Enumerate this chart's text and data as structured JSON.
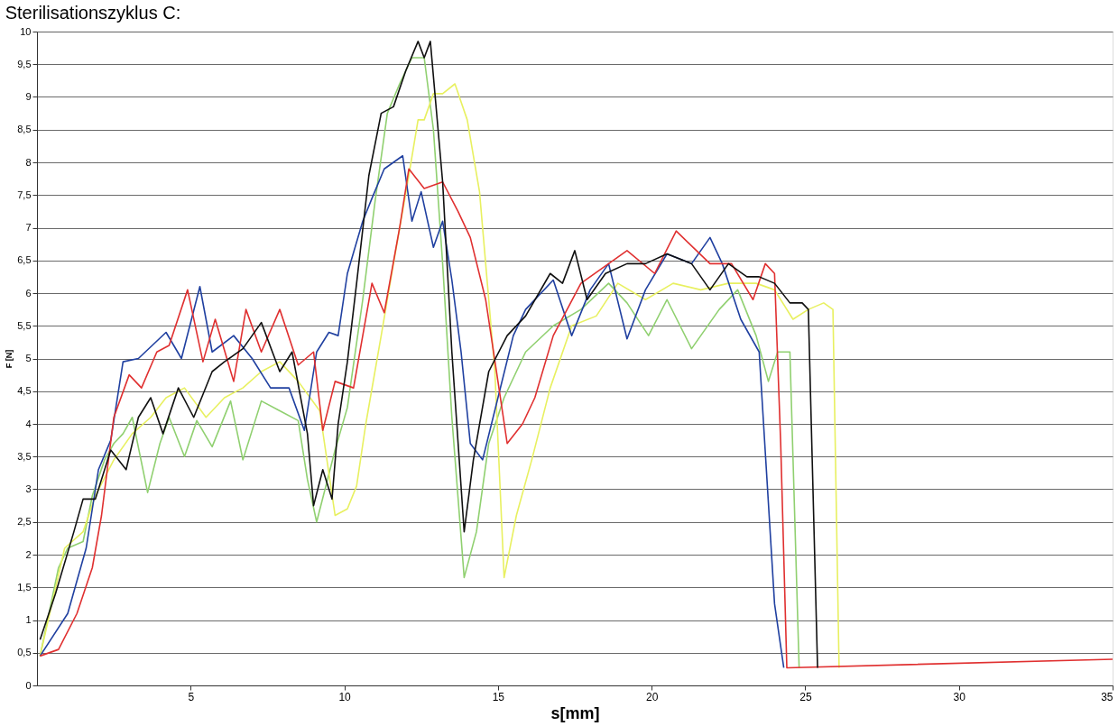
{
  "chart_data": {
    "type": "line",
    "title": "Sterilisationszyklus C:",
    "xlabel": "s[mm]",
    "ylabel": "F [N]",
    "xlim": [
      0,
      35
    ],
    "xticks": [
      5,
      10,
      15,
      20,
      25,
      30,
      35
    ],
    "ylim": [
      0,
      10
    ],
    "yticks": [
      0,
      {
        "value": 0.5,
        "label": "0,5"
      },
      1,
      {
        "value": 1.5,
        "label": "1,5"
      },
      2,
      {
        "value": 2.5,
        "label": "2,5"
      },
      3,
      {
        "value": 3.5,
        "label": "3,5"
      },
      4,
      {
        "value": 4.5,
        "label": "4,5"
      },
      5,
      {
        "value": 5.5,
        "label": "5,5"
      },
      6,
      {
        "value": 6.5,
        "label": "6,5"
      },
      7,
      {
        "value": 7.5,
        "label": "7,5"
      },
      8,
      {
        "value": 8.5,
        "label": "8,5"
      },
      9,
      {
        "value": 9.5,
        "label": "9,5"
      },
      10
    ],
    "grid": "y",
    "marker": "none",
    "line_style": "solid",
    "series": [
      {
        "color": "#90d070",
        "x": [
          0.1,
          0.7,
          1.0,
          1.5,
          1.8,
          2.2,
          2.5,
          2.8,
          3.1,
          3.6,
          4.0,
          4.3,
          4.8,
          5.2,
          5.7,
          6.3,
          6.7,
          7.3,
          7.9,
          8.5,
          8.8,
          9.1,
          9.7,
          10.1,
          10.6,
          11.0,
          11.4,
          11.8,
          12.2,
          12.6,
          12.9,
          13.2,
          13.5,
          13.9,
          14.3,
          14.7,
          15.2,
          15.9,
          16.8,
          17.7,
          18.6,
          19.2,
          19.9,
          20.5,
          21.3,
          22.2,
          22.8,
          23.4,
          23.8,
          24.1,
          24.5,
          24.8
        ],
        "values": [
          0.45,
          1.8,
          2.1,
          2.2,
          2.9,
          3.45,
          3.7,
          3.85,
          4.1,
          2.95,
          3.7,
          4.1,
          3.5,
          4.05,
          3.65,
          4.35,
          3.45,
          4.35,
          4.2,
          4.05,
          3.15,
          2.5,
          3.6,
          4.25,
          5.9,
          7.4,
          8.75,
          9.2,
          9.6,
          9.6,
          8.5,
          6.45,
          4.1,
          1.65,
          2.35,
          3.7,
          4.4,
          5.1,
          5.5,
          5.75,
          6.15,
          5.85,
          5.35,
          5.9,
          5.15,
          5.75,
          6.05,
          5.35,
          4.65,
          5.1,
          5.1,
          0.27
        ]
      },
      {
        "color": "#e8f060",
        "x": [
          0.1,
          0.9,
          1.5,
          1.9,
          2.5,
          3.1,
          3.7,
          4.2,
          4.8,
          5.5,
          6.1,
          6.7,
          7.3,
          7.9,
          8.5,
          9.2,
          9.7,
          10.1,
          10.4,
          10.7,
          11.2,
          11.6,
          12.1,
          12.4,
          12.6,
          12.9,
          13.2,
          13.6,
          14.0,
          14.4,
          14.9,
          15.2,
          15.6,
          16.1,
          16.7,
          17.4,
          18.2,
          18.9,
          19.8,
          20.7,
          21.6,
          22.5,
          23.4,
          24.0,
          24.6,
          25.1,
          25.6,
          25.9,
          26.1
        ],
        "values": [
          0.45,
          2.1,
          2.35,
          2.9,
          3.45,
          3.85,
          4.1,
          4.4,
          4.55,
          4.1,
          4.4,
          4.55,
          4.8,
          4.95,
          4.65,
          4.2,
          2.6,
          2.7,
          3.05,
          4.0,
          5.35,
          6.45,
          7.8,
          8.65,
          8.65,
          9.05,
          9.05,
          9.2,
          8.65,
          7.55,
          4.8,
          1.65,
          2.6,
          3.45,
          4.55,
          5.5,
          5.65,
          6.15,
          5.9,
          6.15,
          6.05,
          6.15,
          6.15,
          6.05,
          5.6,
          5.75,
          5.85,
          5.75,
          0.27
        ]
      },
      {
        "color": "#2040a0",
        "x": [
          0.1,
          1.0,
          1.6,
          2.0,
          2.4,
          2.8,
          3.3,
          4.2,
          4.7,
          5.3,
          5.7,
          6.4,
          7.0,
          7.6,
          8.2,
          8.7,
          9.1,
          9.5,
          9.8,
          10.1,
          10.6,
          10.9,
          11.3,
          11.9,
          12.2,
          12.5,
          12.9,
          13.2,
          13.5,
          13.8,
          14.1,
          14.5,
          15.0,
          15.5,
          15.9,
          16.8,
          17.4,
          18.0,
          18.6,
          19.2,
          19.8,
          20.5,
          21.3,
          21.9,
          22.3,
          22.9,
          23.5,
          24.0,
          24.3
        ],
        "values": [
          0.45,
          1.1,
          2.1,
          3.3,
          3.75,
          4.95,
          5.0,
          5.4,
          5.0,
          6.1,
          5.1,
          5.35,
          5.0,
          4.55,
          4.55,
          3.9,
          5.1,
          5.4,
          5.35,
          6.3,
          7.1,
          7.45,
          7.9,
          8.1,
          7.1,
          7.55,
          6.7,
          7.1,
          6.2,
          5.1,
          3.7,
          3.45,
          4.4,
          5.35,
          5.75,
          6.2,
          5.35,
          6.05,
          6.45,
          5.3,
          6.05,
          6.6,
          6.45,
          6.85,
          6.45,
          5.6,
          5.1,
          1.25,
          0.27
        ]
      },
      {
        "color": "#e03030",
        "x": [
          0.1,
          0.7,
          1.3,
          1.8,
          2.1,
          2.5,
          3.0,
          3.4,
          3.9,
          4.3,
          4.9,
          5.4,
          5.8,
          6.4,
          6.8,
          7.3,
          7.9,
          8.5,
          9.0,
          9.3,
          9.7,
          10.3,
          10.9,
          11.3,
          11.8,
          12.1,
          12.6,
          13.2,
          13.7,
          14.1,
          14.6,
          15.0,
          15.3,
          15.8,
          16.2,
          16.8,
          17.7,
          18.6,
          19.2,
          20.1,
          20.8,
          21.9,
          22.6,
          23.3,
          23.7,
          24.0,
          24.2,
          24.4,
          35
        ],
        "values": [
          0.45,
          0.55,
          1.1,
          1.8,
          2.6,
          4.1,
          4.75,
          4.55,
          5.1,
          5.2,
          6.05,
          4.95,
          5.6,
          4.65,
          5.75,
          5.1,
          5.75,
          4.9,
          5.1,
          3.9,
          4.65,
          4.55,
          6.15,
          5.7,
          7.0,
          7.9,
          7.6,
          7.7,
          7.25,
          6.85,
          5.9,
          4.65,
          3.7,
          4.0,
          4.4,
          5.35,
          6.15,
          6.45,
          6.65,
          6.3,
          6.95,
          6.45,
          6.45,
          5.9,
          6.45,
          6.3,
          3.7,
          0.27,
          0.4
        ]
      },
      {
        "color": "#101010",
        "x": [
          0.1,
          0.6,
          1.2,
          1.5,
          1.9,
          2.4,
          2.9,
          3.3,
          3.7,
          4.1,
          4.6,
          5.1,
          5.7,
          6.1,
          6.7,
          7.3,
          7.9,
          8.3,
          8.8,
          9.0,
          9.3,
          9.6,
          9.8,
          10.1,
          10.4,
          10.8,
          11.2,
          11.6,
          12.0,
          12.4,
          12.6,
          12.8,
          13.2,
          13.5,
          13.9,
          14.2,
          14.7,
          15.3,
          15.9,
          16.7,
          17.1,
          17.5,
          17.9,
          18.5,
          19.2,
          19.8,
          20.5,
          21.3,
          21.9,
          22.5,
          23.1,
          23.5,
          24.0,
          24.5,
          24.9,
          25.1,
          25.4
        ],
        "values": [
          0.7,
          1.4,
          2.35,
          2.85,
          2.85,
          3.6,
          3.3,
          4.1,
          4.4,
          3.85,
          4.55,
          4.1,
          4.8,
          4.95,
          5.15,
          5.55,
          4.8,
          5.1,
          3.85,
          2.75,
          3.3,
          2.85,
          4.0,
          4.95,
          6.15,
          7.8,
          8.75,
          8.85,
          9.4,
          9.85,
          9.6,
          9.85,
          7.7,
          5.1,
          2.35,
          3.45,
          4.8,
          5.35,
          5.65,
          6.3,
          6.15,
          6.65,
          5.9,
          6.3,
          6.45,
          6.45,
          6.6,
          6.45,
          6.05,
          6.45,
          6.25,
          6.25,
          6.15,
          5.85,
          5.85,
          5.75,
          0.27
        ]
      }
    ]
  }
}
